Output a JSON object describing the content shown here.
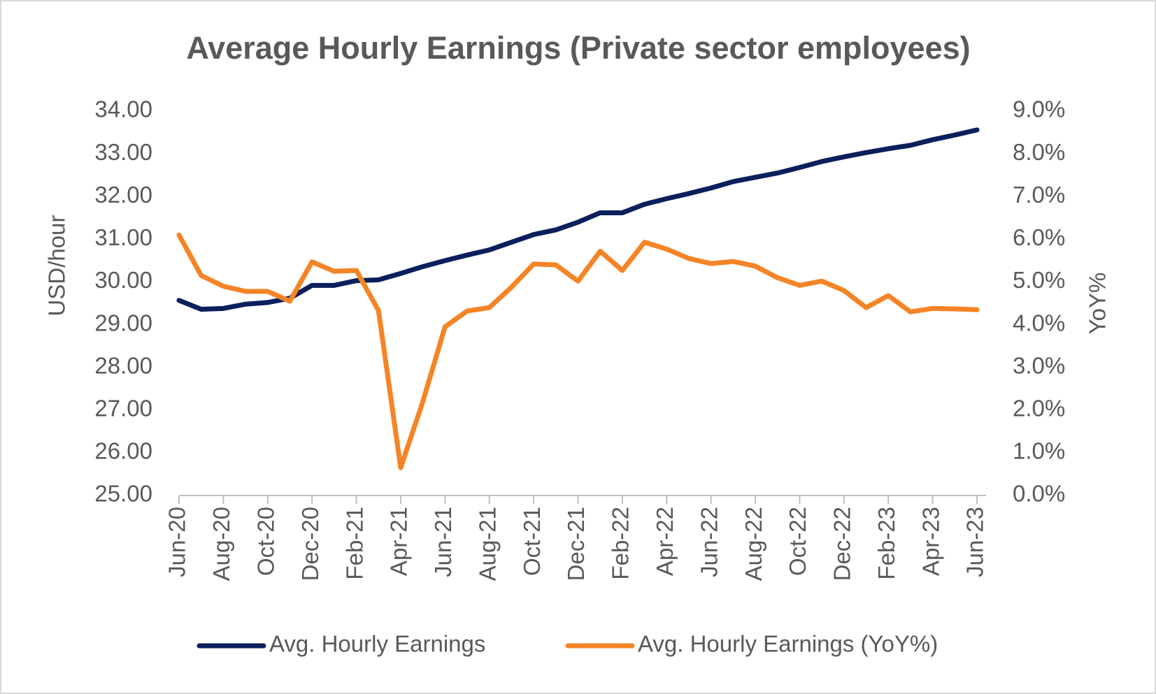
{
  "chart_data": {
    "type": "line",
    "title": "Average Hourly Earnings (Private sector employees)",
    "ylabel": "USD/hour",
    "y2label": "YoY%",
    "categories": [
      "Jun-20",
      null,
      "Aug-20",
      null,
      "Oct-20",
      null,
      "Dec-20",
      null,
      "Feb-21",
      null,
      "Apr-21",
      null,
      "Jun-21",
      null,
      "Aug-21",
      null,
      "Oct-21",
      null,
      "Dec-21",
      null,
      "Feb-22",
      null,
      "Apr-22",
      null,
      "Jun-22",
      null,
      "Aug-22",
      null,
      "Oct-22",
      null,
      "Dec-22",
      null,
      "Feb-23",
      null,
      "Apr-23",
      null,
      "Jun-23"
    ],
    "series": [
      {
        "name": "Avg. Hourly Earnings",
        "color": "#0b1f5c",
        "axis": "y",
        "values": [
          29.57,
          29.36,
          29.38,
          29.48,
          29.52,
          29.62,
          29.92,
          29.92,
          30.03,
          30.05,
          30.2,
          30.36,
          30.5,
          30.63,
          30.75,
          30.93,
          31.11,
          31.22,
          31.4,
          31.62,
          31.62,
          31.82,
          31.95,
          32.07,
          32.2,
          32.35,
          32.45,
          32.55,
          32.68,
          32.82,
          32.93,
          33.03,
          33.12,
          33.2,
          33.33,
          33.44,
          33.56
        ]
      },
      {
        "name": "Avg. Hourly Earnings (YoY%)",
        "color": "#f58426",
        "axis": "y2",
        "values": [
          6.1,
          5.15,
          4.9,
          4.78,
          4.78,
          4.55,
          5.47,
          5.25,
          5.27,
          4.33,
          0.65,
          2.2,
          3.95,
          4.32,
          4.4,
          4.88,
          5.42,
          5.4,
          5.02,
          5.72,
          5.27,
          5.93,
          5.77,
          5.55,
          5.43,
          5.48,
          5.37,
          5.1,
          4.92,
          5.02,
          4.8,
          4.4,
          4.68,
          4.3,
          4.38,
          4.37,
          4.35
        ]
      }
    ],
    "ylim": [
      25,
      34
    ],
    "yticks": [
      {
        "value": 25,
        "label": "25.00"
      },
      {
        "value": 26,
        "label": "26.00"
      },
      {
        "value": 27,
        "label": "27.00"
      },
      {
        "value": 28,
        "label": "28.00"
      },
      {
        "value": 29,
        "label": "29.00"
      },
      {
        "value": 30,
        "label": "30.00"
      },
      {
        "value": 31,
        "label": "31.00"
      },
      {
        "value": 32,
        "label": "32.00"
      },
      {
        "value": 33,
        "label": "33.00"
      },
      {
        "value": 34,
        "label": "34.00"
      }
    ],
    "y2lim": [
      0,
      9
    ],
    "y2ticks": [
      {
        "value": 0,
        "label": "0.0%"
      },
      {
        "value": 1,
        "label": "1.0%"
      },
      {
        "value": 2,
        "label": "2.0%"
      },
      {
        "value": 3,
        "label": "3.0%"
      },
      {
        "value": 4,
        "label": "4.0%"
      },
      {
        "value": 5,
        "label": "5.0%"
      },
      {
        "value": 6,
        "label": "6.0%"
      },
      {
        "value": 7,
        "label": "7.0%"
      },
      {
        "value": 8,
        "label": "8.0%"
      },
      {
        "value": 9,
        "label": "9.0%"
      }
    ],
    "grid": false,
    "legend": "bottom"
  }
}
